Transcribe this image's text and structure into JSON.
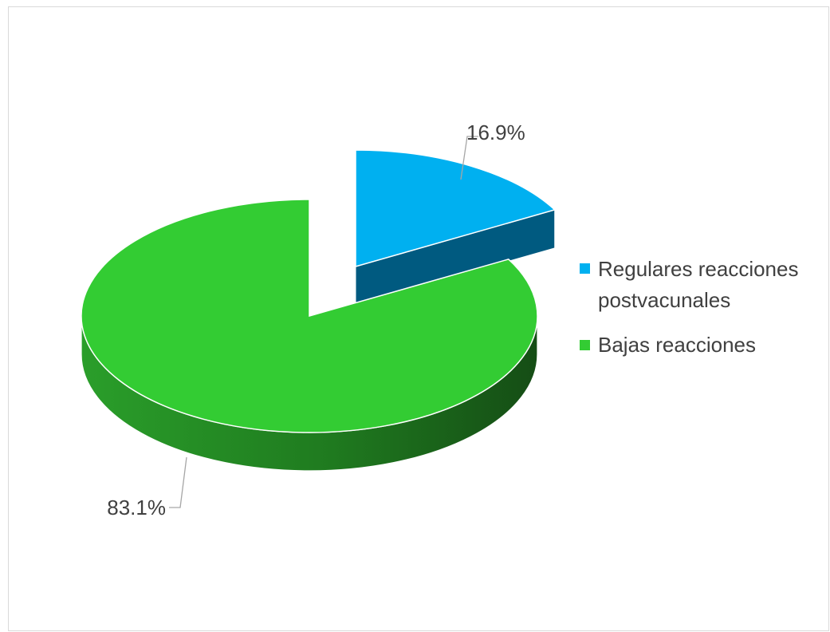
{
  "chart_data": {
    "type": "pie",
    "title": "",
    "slices": [
      {
        "label": "Regulares reacciones postvacunales",
        "label_lines": [
          "Regulares reacciones",
          "postvacunales"
        ],
        "value": 16.9,
        "display": "16.9%",
        "color": "#00b0f0",
        "side_color": "#005a80"
      },
      {
        "label": "Bajas reacciones",
        "label_lines": [
          "Bajas reacciones"
        ],
        "value": 83.1,
        "display": "83.1%",
        "color": "#33cc33",
        "side_color": "#1f8a1f"
      }
    ],
    "legend_position": "right",
    "style": "3d-exploded"
  }
}
